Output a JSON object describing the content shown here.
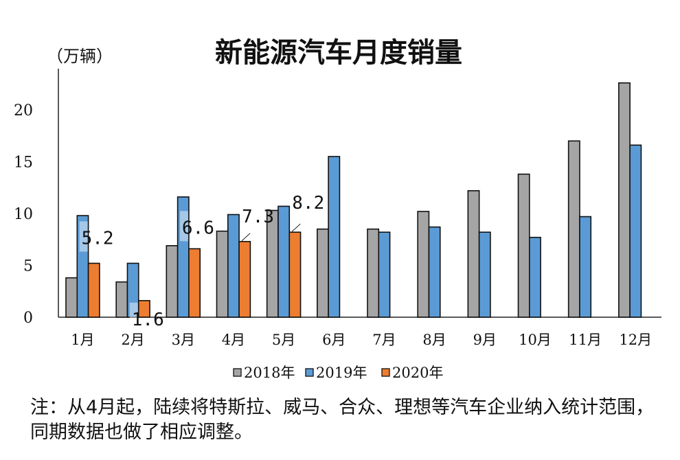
{
  "chart_data": {
    "type": "bar",
    "title": "新能源汽车月度销量",
    "ylabel": "（万辆）",
    "xlabel": "",
    "ylim": [
      0,
      24
    ],
    "yticks": [
      0,
      5,
      10,
      15,
      20
    ],
    "grid": false,
    "legend_position": "bottom",
    "categories": [
      "1月",
      "2月",
      "3月",
      "4月",
      "5月",
      "6月",
      "7月",
      "8月",
      "9月",
      "10月",
      "11月",
      "12月"
    ],
    "series": [
      {
        "name": "2018年",
        "color": "#A5A5A5",
        "values": [
          3.8,
          3.4,
          6.9,
          8.3,
          10.3,
          8.5,
          8.5,
          10.2,
          12.2,
          13.8,
          17.0,
          22.6
        ]
      },
      {
        "name": "2019年",
        "color": "#5B9BD5",
        "values": [
          9.8,
          5.2,
          11.6,
          9.9,
          10.7,
          15.5,
          8.2,
          8.7,
          8.2,
          7.7,
          9.7,
          16.6
        ]
      },
      {
        "name": "2020年",
        "color": "#ED7D31",
        "values": [
          5.2,
          1.6,
          6.6,
          7.3,
          8.2,
          null,
          null,
          null,
          null,
          null,
          null,
          null
        ]
      }
    ],
    "data_labels": {
      "series": "2020年",
      "labels": [
        "5.2",
        "1.6",
        "6.6",
        "7.3",
        "8.2"
      ]
    }
  },
  "note": "注：从4月起，陆续将特斯拉、威马、合众、理想等汽车企业纳入统计范围，同期数据也做了相应调整。"
}
